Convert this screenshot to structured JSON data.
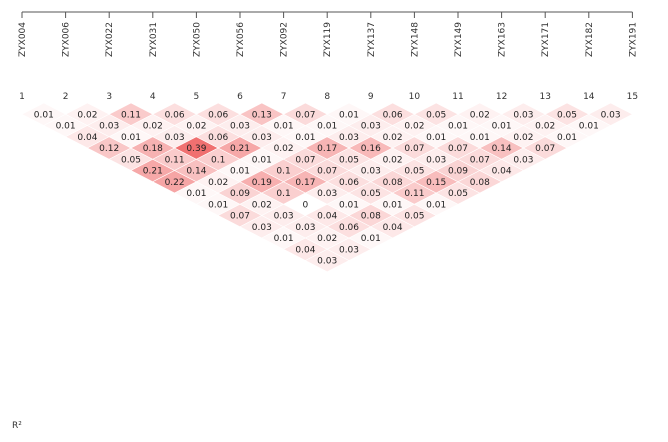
{
  "chart_data": {
    "type": "heatmap",
    "subtype": "ld-triangle",
    "markers": [
      "ZYX004",
      "ZYX006",
      "ZYX022",
      "ZYX031",
      "ZYX050",
      "ZYX056",
      "ZYX092",
      "ZYX119",
      "ZYX137",
      "ZYX148",
      "ZYX149",
      "ZYX163",
      "ZYX171",
      "ZYX182",
      "ZYX191"
    ],
    "indices": [
      "1",
      "2",
      "3",
      "4",
      "5",
      "6",
      "7",
      "8",
      "9",
      "10",
      "11",
      "12",
      "13",
      "14",
      "15"
    ],
    "legend_label": "R²",
    "color_low": "#ffffff",
    "color_high": "#f07070",
    "value_max": 0.39,
    "r2": [
      [
        "0.01",
        "0.01",
        "0.04",
        "0.12",
        "0.05",
        "0.21",
        "0.22",
        "0.01",
        "0.01",
        "0.07",
        "0.03",
        "0.01",
        "0.04",
        "0.03"
      ],
      [
        "0.02",
        "0.03",
        "0.01",
        "0.18",
        "0.11",
        "0.14",
        "0.02",
        "0.09",
        "0.02",
        "0.03",
        "0.03",
        "0.02",
        "0.03"
      ],
      [
        "0.11",
        "0.02",
        "0.03",
        "0.39",
        "0.1",
        "0.01",
        "0.19",
        "0.1",
        "0",
        "0.04",
        "0.06",
        "0.01"
      ],
      [
        "0.06",
        "0.02",
        "0.06",
        "0.21",
        "0.01",
        "0.1",
        "0.17",
        "0.03",
        "0.01",
        "0.08",
        "0.04"
      ],
      [
        "0.06",
        "0.03",
        "0.03",
        "0.02",
        "0.07",
        "0.07",
        "0.06",
        "0.05",
        "0.01",
        "0.05"
      ],
      [
        "0.13",
        "0.01",
        "0.01",
        "0.17",
        "0.05",
        "0.03",
        "0.08",
        "0.11",
        "0.01"
      ],
      [
        "0.07",
        "0.01",
        "0.03",
        "0.16",
        "0.02",
        "0.05",
        "0.15",
        "0.05"
      ],
      [
        "0.01",
        "0.03",
        "0.02",
        "0.07",
        "0.03",
        "0.09",
        "0.08"
      ],
      [
        "0.06",
        "0.02",
        "0.01",
        "0.07",
        "0.07",
        "0.04"
      ],
      [
        "0.05",
        "0.01",
        "0.01",
        "0.14",
        "0.03"
      ],
      [
        "0.02",
        "0.01",
        "0.02",
        "0.07"
      ],
      [
        "0.03",
        "0.02",
        "0.01"
      ],
      [
        "0.05",
        "0.01"
      ],
      [
        "0.03"
      ]
    ]
  }
}
